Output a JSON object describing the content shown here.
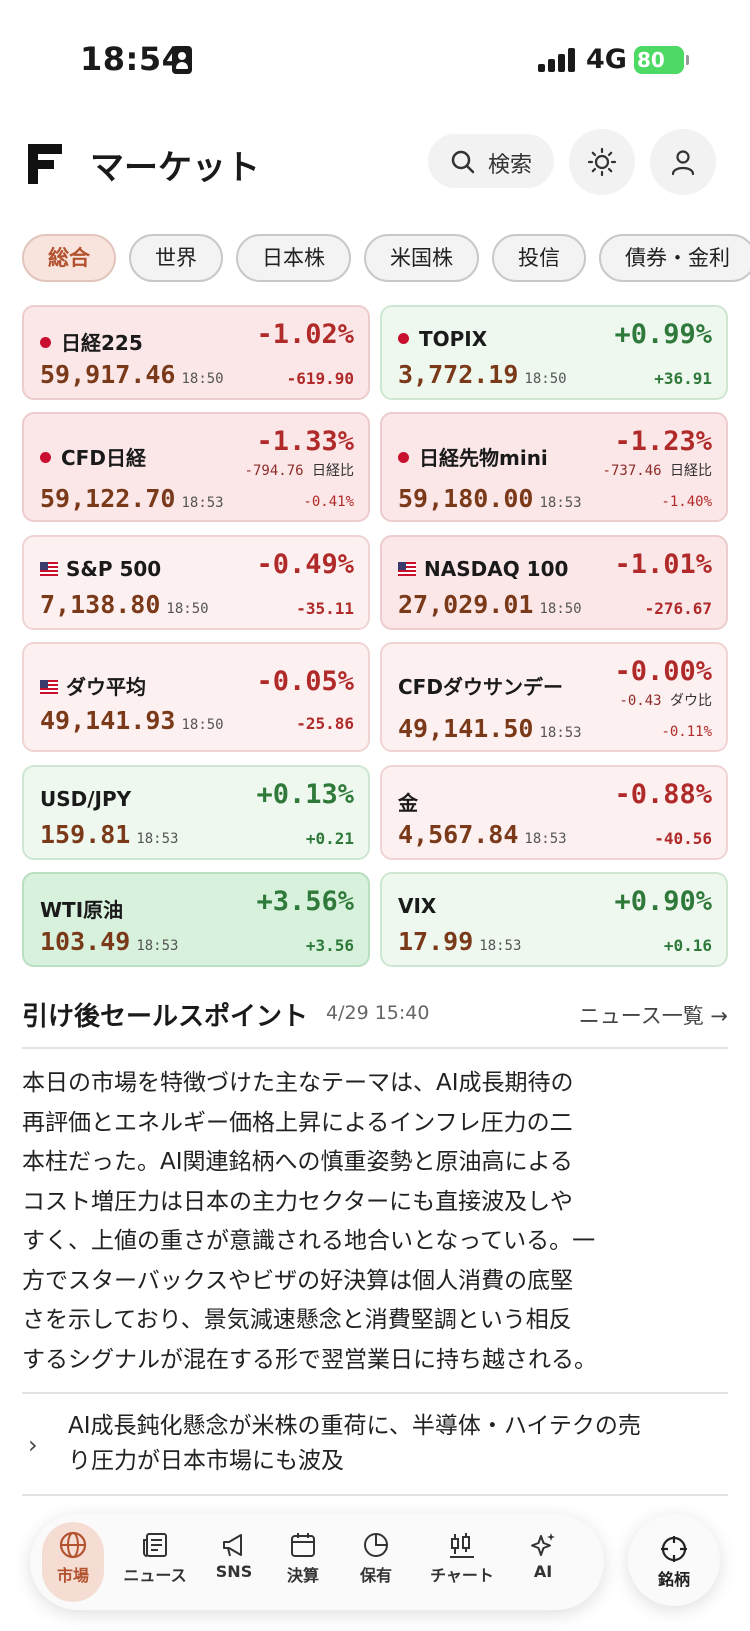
{
  "status_bar": {
    "time": "18:54",
    "network": "4G",
    "battery": "80"
  },
  "header": {
    "title": "マーケット",
    "search_label": "検索"
  },
  "chips": [
    "総合",
    "世界",
    "日本株",
    "米国株",
    "投信",
    "債券・金利"
  ],
  "cards": [
    {
      "name": "日経225",
      "flag": "jp",
      "pct": "-1.02%",
      "sub_value": "",
      "sub_label": "",
      "price": "59,917.46",
      "time": "18:50",
      "change": "-619.90",
      "direction": "down"
    },
    {
      "name": "TOPIX",
      "flag": "jp",
      "pct": "+0.99%",
      "sub_value": "",
      "sub_label": "",
      "price": "3,772.19",
      "time": "18:50",
      "change": "+36.91",
      "direction": "up"
    },
    {
      "name": "CFD日経",
      "flag": "jp",
      "pct": "-1.33%",
      "sub_value": "-794.76",
      "sub_label": "日経比",
      "price": "59,122.70",
      "time": "18:53",
      "change": "-0.41%",
      "direction": "down"
    },
    {
      "name": "日経先物mini",
      "flag": "jp",
      "pct": "-1.23%",
      "sub_value": "-737.46",
      "sub_label": "日経比",
      "price": "59,180.00",
      "time": "18:53",
      "change": "-1.40%",
      "direction": "down"
    },
    {
      "name": "S&P 500",
      "flag": "us",
      "pct": "-0.49%",
      "sub_value": "",
      "sub_label": "",
      "price": "7,138.80",
      "time": "18:50",
      "change": "-35.11",
      "direction": "down"
    },
    {
      "name": "NASDAQ 100",
      "flag": "us",
      "pct": "-1.01%",
      "sub_value": "",
      "sub_label": "",
      "price": "27,029.01",
      "time": "18:50",
      "change": "-276.67",
      "direction": "down"
    },
    {
      "name": "ダウ平均",
      "flag": "us",
      "pct": "-0.05%",
      "sub_value": "",
      "sub_label": "",
      "price": "49,141.93",
      "time": "18:50",
      "change": "-25.86",
      "direction": "down"
    },
    {
      "name": "CFDダウサンデー",
      "flag": "",
      "pct": "-0.00%",
      "sub_value": "-0.43",
      "sub_label": "ダウ比",
      "price": "49,141.50",
      "time": "18:53",
      "change": "-0.11%",
      "direction": "down"
    },
    {
      "name": "USD/JPY",
      "flag": "",
      "pct": "+0.13%",
      "sub_value": "",
      "sub_label": "",
      "price": "159.81",
      "time": "18:53",
      "change": "+0.21",
      "direction": "up"
    },
    {
      "name": "金",
      "flag": "",
      "pct": "-0.88%",
      "sub_value": "",
      "sub_label": "",
      "price": "4,567.84",
      "time": "18:53",
      "change": "-40.56",
      "direction": "down"
    },
    {
      "name": "WTI原油",
      "flag": "",
      "pct": "+3.56%",
      "sub_value": "",
      "sub_label": "",
      "price": "103.49",
      "time": "18:53",
      "change": "+3.56",
      "direction": "up"
    },
    {
      "name": "VIX",
      "flag": "",
      "pct": "+0.90%",
      "sub_value": "",
      "sub_label": "",
      "price": "17.99",
      "time": "18:53",
      "change": "+0.16",
      "direction": "up"
    }
  ],
  "news": {
    "title": "引け後セールスポイント",
    "time": "4/29 15:40",
    "link": "ニュース一覧 →",
    "summary_lines": [
      "本日の市場を特徴づけた主なテーマは、AI成長期待の",
      "再評価とエネルギー価格上昇によるインフレ圧力の二",
      "本柱だった。AI関連銘柄への慎重姿勢と原油高による",
      "コスト増圧力は日本の主力セクターにも直接波及しや",
      "すく、上値の重さが意識される地合いとなっている。一",
      "方でスターバックスやビザの好決算は個人消費の底堅",
      "さを示しており、景気減速懸念と消費堅調という相反",
      "するシグナルが混在する形で翌営業日に持ち越される。"
    ],
    "item_lines": [
      "AI成長鈍化懸念が米株の重荷に、半導体・ハイテクの売",
      "り圧力が日本市場にも波及"
    ]
  },
  "bottom_nav": {
    "items": [
      "市場",
      "ニュース",
      "SNS",
      "決算",
      "保有",
      "チャート",
      "AI"
    ],
    "fab_label": "銘柄"
  },
  "colors": {
    "accent": "#b3522f",
    "down": "#b02a2a",
    "up": "#2f7a3a"
  }
}
